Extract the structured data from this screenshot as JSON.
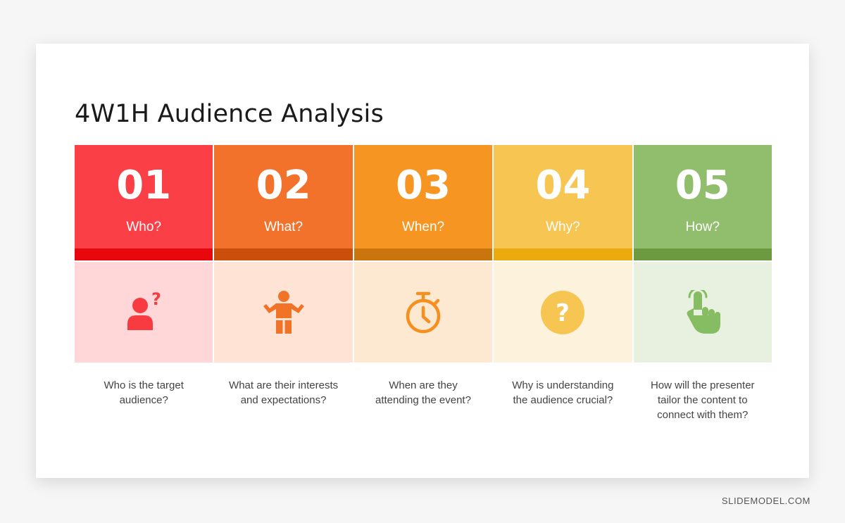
{
  "title": "4W1H Audience Analysis",
  "columns": [
    {
      "number": "01",
      "label": "Who?",
      "icon": "person-question-icon",
      "desc_lines": [
        "Who is the target",
        "audience?"
      ],
      "colors": {
        "head": "#fa4046",
        "bar": "#e8070c",
        "body": "#ffd7d8",
        "icon": "#f73b40"
      }
    },
    {
      "number": "02",
      "label": "What?",
      "icon": "person-shrug-icon",
      "desc_lines": [
        "What are their interests",
        "and expectations?"
      ],
      "colors": {
        "head": "#f2722c",
        "bar": "#cc4e0b",
        "body": "#ffe3d5",
        "icon": "#f07328"
      }
    },
    {
      "number": "03",
      "label": "When?",
      "icon": "stopwatch-icon",
      "desc_lines": [
        "When are they",
        "attending the event?"
      ],
      "colors": {
        "head": "#f79522",
        "bar": "#c9740c",
        "body": "#fde8d2",
        "icon": "#f58f1d"
      }
    },
    {
      "number": "04",
      "label": "Why?",
      "icon": "question-circle-icon",
      "desc_lines": [
        "Why is understanding",
        "the audience crucial?"
      ],
      "colors": {
        "head": "#f7c552",
        "bar": "#edaa0e",
        "body": "#fdf3dc",
        "icon": "#f7c552"
      }
    },
    {
      "number": "05",
      "label": "How?",
      "icon": "hand-tap-icon",
      "desc_lines": [
        "How will the presenter",
        "tailor the content to",
        "connect with them?"
      ],
      "colors": {
        "head": "#90be6d",
        "bar": "#6b9a41",
        "body": "#e8f0df",
        "icon": "#86bd63"
      }
    }
  ],
  "brand": "SLIDEMODEL.COM"
}
